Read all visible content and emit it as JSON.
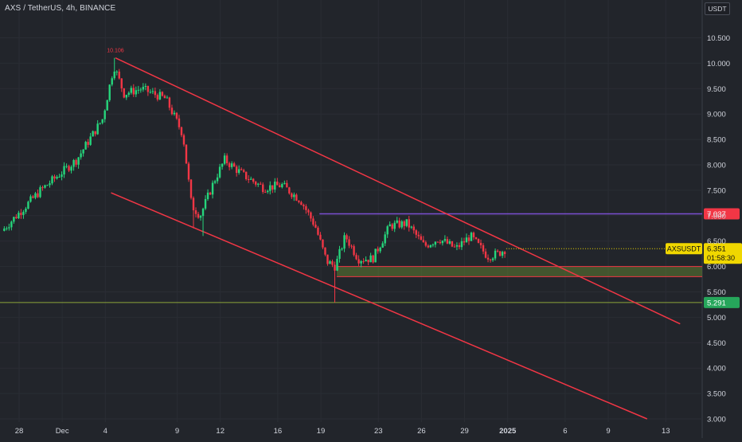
{
  "header": {
    "title": "AXS / TetherUS, 4h, BINANCE",
    "currency": "USDT"
  },
  "colors": {
    "background": "#22252b",
    "up": "#26d67c",
    "down": "#f23645",
    "trendline": "#f23645",
    "resistance": "#7b4fd1",
    "support_zone": "#5f7d32",
    "support_line": "#8ca53a",
    "last_price_bg": "#f0d700",
    "label_7037_bg": "#f23645",
    "label_5291_bg": "#26a65b"
  },
  "chart_data": {
    "type": "candlestick",
    "symbol": "AXSUSDT",
    "interval": "4h",
    "exchange": "BINANCE",
    "ylim": [
      3.0,
      10.85
    ],
    "y_ticks": [
      "10.500",
      "10.000",
      "9.500",
      "9.000",
      "8.500",
      "8.000",
      "7.500",
      "7.000",
      "6.500",
      "6.000",
      "5.500",
      "5.000",
      "4.500",
      "4.000",
      "3.500",
      "3.000"
    ],
    "x_ticks": [
      "28",
      "Dec",
      "4",
      "9",
      "12",
      "16",
      "19",
      "23",
      "26",
      "29",
      "2025",
      "6",
      "9",
      "13"
    ],
    "x_tick_days": [
      0,
      3,
      6,
      11,
      14,
      18,
      21,
      25,
      28,
      31,
      34,
      38,
      41,
      45
    ],
    "annotations": {
      "high_label": "10.106",
      "last_price_symbol": "AXSUSDT",
      "last_price": "6.351",
      "countdown": "01:58:30",
      "level_high": "7.037",
      "level_low": "5.291"
    },
    "levels": {
      "resistance": 7.037,
      "support_zone": [
        5.8,
        6.0
      ],
      "support": 5.291
    },
    "key_points": [
      {
        "day": -1.2,
        "close": 6.7
      },
      {
        "day": 1.5,
        "close": 7.5
      },
      {
        "day": 4.0,
        "close": 8.1
      },
      {
        "day": 5.8,
        "close": 8.9
      },
      {
        "day": 6.6,
        "close": 9.95
      },
      {
        "day": 7.3,
        "close": 9.4
      },
      {
        "day": 8.5,
        "close": 9.5
      },
      {
        "day": 10.2,
        "close": 9.3
      },
      {
        "day": 11.4,
        "close": 8.6
      },
      {
        "day": 12.0,
        "close": 7.2
      },
      {
        "day": 12.6,
        "close": 7.0
      },
      {
        "day": 13.6,
        "close": 7.7
      },
      {
        "day": 14.3,
        "close": 8.1
      },
      {
        "day": 15.6,
        "close": 7.8
      },
      {
        "day": 17.0,
        "close": 7.55
      },
      {
        "day": 18.3,
        "close": 7.6
      },
      {
        "day": 19.6,
        "close": 7.3
      },
      {
        "day": 20.6,
        "close": 6.8
      },
      {
        "day": 21.4,
        "close": 6.1
      },
      {
        "day": 22.0,
        "close": 6.0
      },
      {
        "day": 22.7,
        "close": 6.6
      },
      {
        "day": 23.6,
        "close": 6.15
      },
      {
        "day": 24.6,
        "close": 6.15
      },
      {
        "day": 25.8,
        "close": 6.8
      },
      {
        "day": 27.0,
        "close": 6.85
      },
      {
        "day": 28.2,
        "close": 6.4
      },
      {
        "day": 29.2,
        "close": 6.55
      },
      {
        "day": 30.4,
        "close": 6.35
      },
      {
        "day": 31.4,
        "close": 6.6
      },
      {
        "day": 32.6,
        "close": 6.2
      },
      {
        "day": 33.3,
        "close": 6.25
      },
      {
        "day": 33.9,
        "close": 6.351
      }
    ],
    "trendlines": [
      {
        "from": {
          "day": 6.7,
          "price": 10.106
        },
        "to": {
          "day": 46.0,
          "price": 4.87
        }
      },
      {
        "from": {
          "day": 6.4,
          "price": 7.45
        },
        "to": {
          "day": 43.7,
          "price": 3.0
        }
      }
    ]
  }
}
